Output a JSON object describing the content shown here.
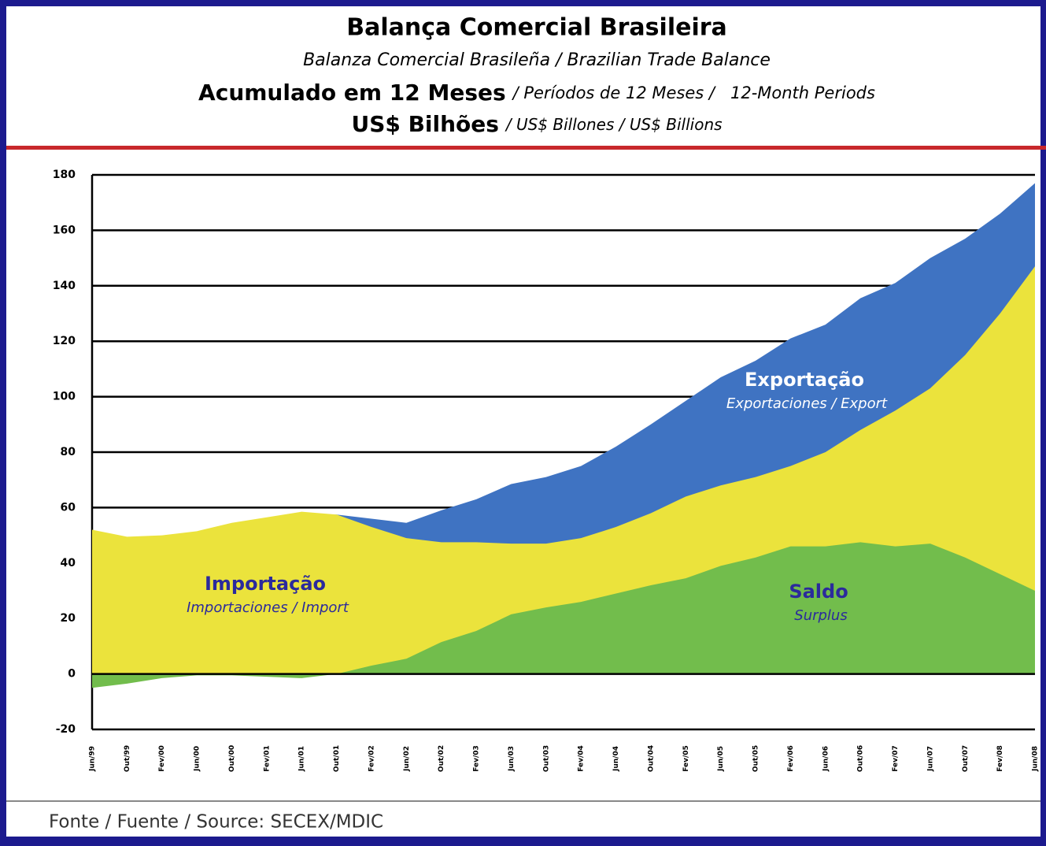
{
  "chart_data": {
    "type": "area",
    "title": "Balança Comercial Brasileira",
    "subtitle": "Balanza Comercial Brasileña / Brazilian Trade Balance",
    "period_label": "Acumulado em 12 Meses",
    "period_label_translations": "/ Períodos de 12 Meses /   12-Month Periods",
    "unit_label": "US$ Bilhões",
    "unit_label_translations": "/ US$ Billones / US$ Billions",
    "source": "Fonte / Fuente / Source: SECEX/MDIC",
    "categories": [
      "Jun/99",
      "Out/99",
      "Fev/00",
      "Jun/00",
      "Out/00",
      "Fev/01",
      "Jun/01",
      "Out/01",
      "Fev/02",
      "Jun/02",
      "Out/02",
      "Fev/03",
      "Jun/03",
      "Out/03",
      "Fev/04",
      "Jun/04",
      "Out/04",
      "Fev/05",
      "Jun/05",
      "Out/05",
      "Fev/06",
      "Jun/06",
      "Out/06",
      "Fev/07",
      "Jun/07",
      "Out/07",
      "Fev/08",
      "Jun/08"
    ],
    "series": [
      {
        "name": "Exportação",
        "label_translation": "Exportaciones / Export",
        "color": "#3f73c2",
        "values": [
          47,
          46,
          48.5,
          51,
          54,
          55.5,
          57,
          57.5,
          56,
          54.5,
          59,
          63,
          68.5,
          71,
          75,
          82,
          90,
          98.5,
          107,
          113,
          121,
          126,
          135.5,
          141,
          150,
          157,
          166,
          177
        ]
      },
      {
        "name": "Importação",
        "label_translation": "Importaciones / Import",
        "color": "#ebe33c",
        "values": [
          52,
          49.5,
          50,
          51.5,
          54.5,
          56.5,
          58.5,
          57.5,
          53,
          49,
          47.5,
          47.5,
          47,
          47,
          49,
          53,
          58,
          64,
          68,
          71,
          75,
          80,
          88,
          95,
          103,
          115,
          130,
          147
        ]
      },
      {
        "name": "Saldo",
        "label_translation": "Surplus",
        "color": "#72bd4c",
        "values": [
          -5,
          -3.5,
          -1.5,
          -0.5,
          -0.5,
          -1,
          -1.5,
          0,
          3,
          5.5,
          11.5,
          15.5,
          21.5,
          24,
          26,
          29,
          32,
          34.5,
          39,
          42,
          46,
          46,
          47.5,
          46,
          47,
          42,
          36,
          30
        ]
      }
    ],
    "ylim": [
      -20,
      180
    ],
    "yticks": [
      -20,
      0,
      20,
      40,
      60,
      80,
      100,
      120,
      140,
      160,
      180
    ],
    "grid": true
  }
}
